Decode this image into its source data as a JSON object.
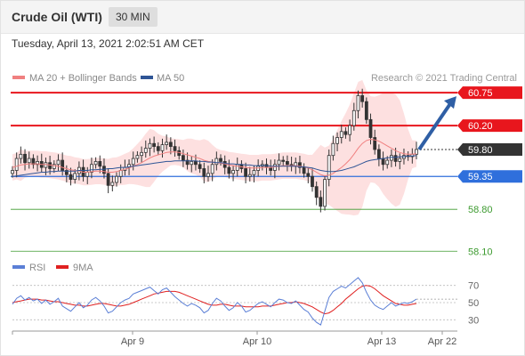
{
  "header": {
    "instrument": "Crude Oil (WTI)",
    "timeframe": "30 MIN"
  },
  "datetime": "Tuesday, April 13, 2021 2:02:51 AM CET",
  "legend": {
    "ma20_bb": "MA 20 + Bollinger Bands",
    "ma50": "MA 50",
    "rsi": "RSI",
    "ma9": "9MA"
  },
  "credit": "Research © 2021 Trading Central",
  "colors": {
    "resistance": "#e8161d",
    "support_blue": "#2f6fdc",
    "support_green": "#3c9a2f",
    "current": "#333333",
    "bollinger": "#fde0e0",
    "ma20": "#f08080",
    "ma50": "#2f5596",
    "arrow": "#2f5fa5",
    "rsi": "#5b7fd6",
    "ma9": "#e02020"
  },
  "chart_data": [
    {
      "type": "candlestick",
      "y_range": [
        58.0,
        60.9
      ],
      "x_ticks": [
        "Apr 9",
        "Apr 10",
        "Apr 13",
        "Apr 22"
      ],
      "levels": [
        {
          "label": "60.75",
          "value": 60.75,
          "kind": "resistance"
        },
        {
          "label": "60.20",
          "value": 60.2,
          "kind": "resistance"
        },
        {
          "label": "59.80",
          "value": 59.8,
          "kind": "current"
        },
        {
          "label": "59.35",
          "value": 59.35,
          "kind": "support"
        },
        {
          "label": "58.80",
          "value": 58.8,
          "kind": "support"
        },
        {
          "label": "58.10",
          "value": 58.1,
          "kind": "support"
        }
      ],
      "close": [
        59.45,
        59.65,
        59.72,
        59.58,
        59.65,
        59.55,
        59.6,
        59.5,
        59.58,
        59.48,
        59.55,
        59.62,
        59.45,
        59.38,
        59.3,
        59.4,
        59.5,
        59.35,
        59.42,
        59.55,
        59.6,
        59.52,
        59.4,
        59.2,
        59.25,
        59.35,
        59.45,
        59.5,
        59.55,
        59.65,
        59.7,
        59.75,
        59.82,
        59.9,
        59.85,
        59.78,
        59.88,
        59.92,
        59.85,
        59.78,
        59.7,
        59.62,
        59.55,
        59.6,
        59.55,
        59.48,
        59.35,
        59.4,
        59.55,
        59.65,
        59.6,
        59.5,
        59.4,
        59.45,
        59.55,
        59.48,
        59.35,
        59.38,
        59.45,
        59.52,
        59.55,
        59.5,
        59.45,
        59.55,
        59.62,
        59.6,
        59.55,
        59.52,
        59.58,
        59.5,
        59.4,
        59.35,
        59.18,
        59.0,
        58.85,
        59.3,
        59.7,
        59.9,
        60.0,
        60.1,
        60.05,
        60.2,
        60.45,
        60.7,
        60.6,
        60.3,
        60.0,
        59.8,
        59.65,
        59.55,
        59.62,
        59.7,
        59.6,
        59.65,
        59.7,
        59.68,
        59.72,
        59.8
      ],
      "ma20": [
        59.5,
        59.52,
        59.54,
        59.55,
        59.56,
        59.56,
        59.56,
        59.55,
        59.55,
        59.54,
        59.53,
        59.52,
        59.5,
        59.48,
        59.46,
        59.45,
        59.44,
        59.42,
        59.42,
        59.43,
        59.44,
        59.44,
        59.43,
        59.42,
        59.42,
        59.43,
        59.45,
        59.47,
        59.49,
        59.52,
        59.55,
        59.58,
        59.62,
        59.66,
        59.69,
        59.71,
        59.73,
        59.75,
        59.76,
        59.76,
        59.75,
        59.73,
        59.71,
        59.69,
        59.67,
        59.65,
        59.62,
        59.6,
        59.59,
        59.58,
        59.57,
        59.56,
        59.54,
        59.53,
        59.52,
        59.51,
        59.5,
        59.49,
        59.49,
        59.49,
        59.5,
        59.5,
        59.5,
        59.51,
        59.52,
        59.53,
        59.53,
        59.53,
        59.53,
        59.52,
        59.51,
        59.49,
        59.46,
        59.42,
        59.38,
        59.36,
        59.37,
        59.4,
        59.45,
        59.5,
        59.56,
        59.63,
        59.72,
        59.82,
        59.9,
        59.95,
        59.97,
        59.96,
        59.94,
        59.9,
        59.86,
        59.82,
        59.78,
        59.75,
        59.73,
        59.72,
        59.72,
        59.73
      ],
      "ma50": [
        59.35,
        59.36,
        59.37,
        59.38,
        59.39,
        59.4,
        59.41,
        59.42,
        59.42,
        59.43,
        59.43,
        59.44,
        59.44,
        59.44,
        59.44,
        59.44,
        59.45,
        59.45,
        59.45,
        59.46,
        59.46,
        59.47,
        59.47,
        59.48,
        59.48,
        59.49,
        59.5,
        59.5,
        59.51,
        59.52,
        59.53,
        59.54,
        59.55,
        59.56,
        59.57,
        59.58,
        59.59,
        59.6,
        59.6,
        59.61,
        59.61,
        59.61,
        59.61,
        59.61,
        59.61,
        59.6,
        59.6,
        59.59,
        59.59,
        59.58,
        59.58,
        59.57,
        59.56,
        59.56,
        59.55,
        59.55,
        59.54,
        59.54,
        59.53,
        59.53,
        59.53,
        59.53,
        59.52,
        59.52,
        59.52,
        59.52,
        59.52,
        59.52,
        59.52,
        59.51,
        59.51,
        59.5,
        59.49,
        59.47,
        59.45,
        59.44,
        59.43,
        59.43,
        59.44,
        59.45,
        59.47,
        59.49,
        59.51,
        59.54,
        59.57,
        59.6,
        59.62,
        59.63,
        59.64,
        59.65,
        59.66,
        59.67,
        59.67,
        59.68,
        59.68,
        59.69,
        59.69,
        59.7
      ]
    },
    {
      "type": "line",
      "name": "RSI",
      "y_range": [
        20,
        80
      ],
      "y_ticks": [
        70,
        50,
        30
      ],
      "rsi": [
        48,
        55,
        58,
        53,
        56,
        52,
        54,
        49,
        53,
        48,
        51,
        55,
        46,
        43,
        40,
        45,
        50,
        44,
        47,
        53,
        56,
        52,
        46,
        38,
        40,
        45,
        50,
        53,
        55,
        60,
        62,
        64,
        66,
        68,
        64,
        60,
        65,
        67,
        62,
        57,
        53,
        49,
        46,
        49,
        47,
        44,
        38,
        41,
        49,
        55,
        52,
        46,
        41,
        44,
        50,
        46,
        39,
        41,
        45,
        49,
        51,
        48,
        45,
        50,
        54,
        53,
        50,
        49,
        52,
        47,
        42,
        39,
        32,
        27,
        24,
        40,
        56,
        63,
        66,
        69,
        67,
        71,
        75,
        79,
        73,
        62,
        53,
        47,
        44,
        42,
        46,
        50,
        46,
        48,
        50,
        49,
        51,
        54
      ],
      "ma9": [
        50,
        51,
        52,
        53,
        54,
        54,
        54,
        53,
        53,
        52,
        51,
        51,
        50,
        49,
        48,
        47,
        47,
        46,
        46,
        47,
        48,
        49,
        49,
        48,
        47,
        46,
        46,
        47,
        48,
        50,
        52,
        54,
        56,
        58,
        60,
        61,
        62,
        63,
        63,
        63,
        62,
        60,
        58,
        56,
        54,
        52,
        50,
        48,
        47,
        47,
        48,
        48,
        47,
        46,
        46,
        46,
        45,
        45,
        45,
        45,
        46,
        46,
        46,
        47,
        48,
        49,
        50,
        50,
        51,
        50,
        49,
        47,
        45,
        42,
        39,
        37,
        38,
        41,
        45,
        49,
        54,
        58,
        62,
        66,
        69,
        70,
        69,
        66,
        62,
        58,
        55,
        52,
        49,
        48,
        47,
        47,
        48,
        49
      ]
    }
  ]
}
